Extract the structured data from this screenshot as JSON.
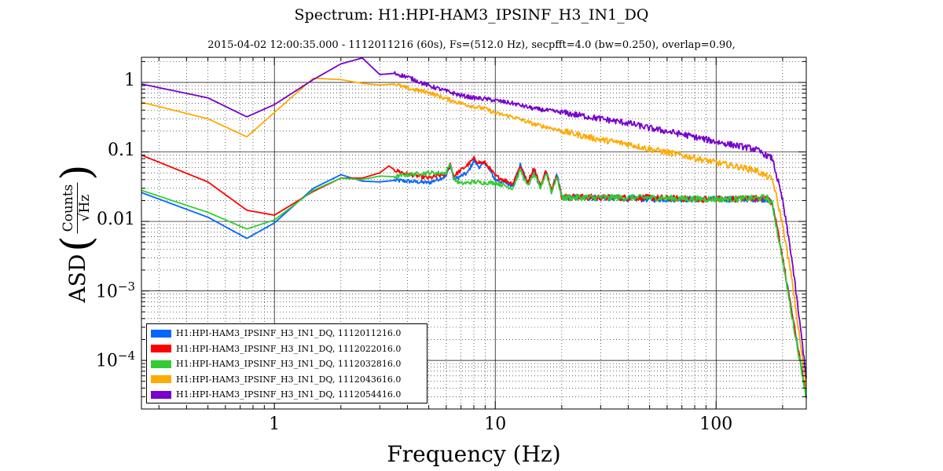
{
  "chart_data": {
    "type": "line",
    "title": "Spectrum: H1:HPI-HAM3_IPSINF_H3_IN1_DQ",
    "subtitle": "2015-04-02 12:00:35.000 - 1112011216 (60s), Fs=(512.0 Hz), secpfft=4.0 (bw=0.250), overlap=0.90,",
    "xlabel": "Frequency (Hz)",
    "ylabel": {
      "prefix": "ASD",
      "numerator": "Counts",
      "denominator": "√Hz"
    },
    "x_scale": "log",
    "y_scale": "log",
    "xlim": [
      0.25,
      256
    ],
    "ylim": [
      2e-05,
      2.3
    ],
    "grid": true,
    "legend_position": "lower-left",
    "x_ticks": [
      {
        "value": 1,
        "label": "1"
      },
      {
        "value": 10,
        "label": "10"
      },
      {
        "value": 100,
        "label": "100"
      }
    ],
    "y_ticks": [
      {
        "value": 1,
        "base": "1",
        "exp": ""
      },
      {
        "value": 0.1,
        "base": "0.1",
        "exp": ""
      },
      {
        "value": 0.01,
        "base": "0.01",
        "exp": ""
      },
      {
        "value": 0.001,
        "base": "10",
        "exp": "−3"
      },
      {
        "value": 0.0001,
        "base": "10",
        "exp": "−4"
      }
    ],
    "series": [
      {
        "name": "H1:HPI-HAM3_IPSINF_H3_IN1_DQ, 1112011216.0",
        "color": "#0066ff",
        "points": [
          [
            0.25,
            0.026
          ],
          [
            0.5,
            0.0115
          ],
          [
            0.75,
            0.0057
          ],
          [
            1.0,
            0.0095
          ],
          [
            1.5,
            0.03
          ],
          [
            2.0,
            0.047
          ],
          [
            2.5,
            0.038
          ],
          [
            3.0,
            0.037
          ],
          [
            3.5,
            0.039
          ],
          [
            4.0,
            0.038
          ],
          [
            5.0,
            0.036
          ],
          [
            6.0,
            0.045
          ],
          [
            6.25,
            0.065
          ],
          [
            6.5,
            0.04
          ],
          [
            7.0,
            0.045
          ],
          [
            7.5,
            0.05
          ],
          [
            8.0,
            0.075
          ],
          [
            8.5,
            0.06
          ],
          [
            9.0,
            0.07
          ],
          [
            10.0,
            0.04
          ],
          [
            12.0,
            0.033
          ],
          [
            13.0,
            0.065
          ],
          [
            14.0,
            0.035
          ],
          [
            15.0,
            0.055
          ],
          [
            16.0,
            0.03
          ],
          [
            17.0,
            0.052
          ],
          [
            18.0,
            0.026
          ],
          [
            19.0,
            0.05
          ],
          [
            20.0,
            0.022
          ],
          [
            30.0,
            0.022
          ],
          [
            50.0,
            0.021
          ],
          [
            80.0,
            0.021
          ],
          [
            120.0,
            0.021
          ],
          [
            170.0,
            0.021
          ],
          [
            180.0,
            0.018
          ],
          [
            200.0,
            0.003
          ],
          [
            220.0,
            0.0005
          ],
          [
            256.0,
            3e-05
          ]
        ]
      },
      {
        "name": "H1:HPI-HAM3_IPSINF_H3_IN1_DQ, 1112022016.0",
        "color": "#ff0000",
        "points": [
          [
            0.25,
            0.09
          ],
          [
            0.5,
            0.037
          ],
          [
            0.75,
            0.0145
          ],
          [
            1.0,
            0.0123
          ],
          [
            1.5,
            0.027
          ],
          [
            2.0,
            0.042
          ],
          [
            2.5,
            0.042
          ],
          [
            3.0,
            0.05
          ],
          [
            3.3,
            0.063
          ],
          [
            3.5,
            0.055
          ],
          [
            4.0,
            0.048
          ],
          [
            5.0,
            0.042
          ],
          [
            6.0,
            0.048
          ],
          [
            6.25,
            0.068
          ],
          [
            6.5,
            0.045
          ],
          [
            7.0,
            0.055
          ],
          [
            7.5,
            0.065
          ],
          [
            8.0,
            0.08
          ],
          [
            8.5,
            0.07
          ],
          [
            9.0,
            0.07
          ],
          [
            10.0,
            0.045
          ],
          [
            12.0,
            0.035
          ],
          [
            13.0,
            0.063
          ],
          [
            14.0,
            0.036
          ],
          [
            15.0,
            0.06
          ],
          [
            16.0,
            0.032
          ],
          [
            17.0,
            0.055
          ],
          [
            18.0,
            0.027
          ],
          [
            19.0,
            0.048
          ],
          [
            20.0,
            0.023
          ],
          [
            30.0,
            0.022
          ],
          [
            50.0,
            0.022
          ],
          [
            80.0,
            0.021
          ],
          [
            120.0,
            0.021
          ],
          [
            170.0,
            0.022
          ],
          [
            180.0,
            0.018
          ],
          [
            200.0,
            0.003
          ],
          [
            220.0,
            0.0005
          ],
          [
            256.0,
            3e-05
          ]
        ]
      },
      {
        "name": "H1:HPI-HAM3_IPSINF_H3_IN1_DQ, 1112032816.0",
        "color": "#33cc33",
        "points": [
          [
            0.25,
            0.028
          ],
          [
            0.5,
            0.0135
          ],
          [
            0.75,
            0.0078
          ],
          [
            1.0,
            0.0105
          ],
          [
            1.5,
            0.028
          ],
          [
            2.0,
            0.042
          ],
          [
            2.5,
            0.04
          ],
          [
            3.0,
            0.045
          ],
          [
            3.5,
            0.044
          ],
          [
            4.0,
            0.047
          ],
          [
            5.0,
            0.05
          ],
          [
            6.0,
            0.05
          ],
          [
            6.25,
            0.07
          ],
          [
            6.5,
            0.04
          ],
          [
            7.0,
            0.035
          ],
          [
            8.0,
            0.037
          ],
          [
            9.0,
            0.036
          ],
          [
            10.0,
            0.036
          ],
          [
            12.0,
            0.03
          ],
          [
            13.0,
            0.055
          ],
          [
            14.0,
            0.032
          ],
          [
            15.0,
            0.048
          ],
          [
            16.0,
            0.03
          ],
          [
            17.0,
            0.05
          ],
          [
            18.0,
            0.026
          ],
          [
            19.0,
            0.045
          ],
          [
            20.0,
            0.022
          ],
          [
            30.0,
            0.022
          ],
          [
            50.0,
            0.022
          ],
          [
            80.0,
            0.021
          ],
          [
            120.0,
            0.021
          ],
          [
            170.0,
            0.022
          ],
          [
            180.0,
            0.017
          ],
          [
            200.0,
            0.0028
          ],
          [
            220.0,
            0.00045
          ],
          [
            256.0,
            3e-05
          ]
        ]
      },
      {
        "name": "H1:HPI-HAM3_IPSINF_H3_IN1_DQ, 1112043616.0",
        "color": "#ffaa00",
        "points": [
          [
            0.25,
            0.52
          ],
          [
            0.5,
            0.3
          ],
          [
            0.75,
            0.165
          ],
          [
            1.0,
            0.37
          ],
          [
            1.5,
            1.15
          ],
          [
            2.0,
            1.1
          ],
          [
            2.5,
            0.97
          ],
          [
            3.0,
            0.92
          ],
          [
            3.5,
            0.95
          ],
          [
            4.0,
            0.82
          ],
          [
            5.0,
            0.72
          ],
          [
            6.0,
            0.58
          ],
          [
            7.0,
            0.5
          ],
          [
            8.0,
            0.45
          ],
          [
            9.0,
            0.42
          ],
          [
            10.0,
            0.36
          ],
          [
            12.0,
            0.32
          ],
          [
            15.0,
            0.25
          ],
          [
            18.0,
            0.22
          ],
          [
            20.0,
            0.2
          ],
          [
            25.0,
            0.17
          ],
          [
            30.0,
            0.15
          ],
          [
            40.0,
            0.13
          ],
          [
            50.0,
            0.11
          ],
          [
            70.0,
            0.09
          ],
          [
            100.0,
            0.07
          ],
          [
            150.0,
            0.055
          ],
          [
            180.0,
            0.04
          ],
          [
            200.0,
            0.009
          ],
          [
            220.0,
            0.0015
          ],
          [
            256.0,
            4e-05
          ]
        ]
      },
      {
        "name": "H1:HPI-HAM3_IPSINF_H3_IN1_DQ, 1112054416.0",
        "color": "#7700cc",
        "points": [
          [
            0.25,
            0.95
          ],
          [
            0.5,
            0.6
          ],
          [
            0.75,
            0.32
          ],
          [
            1.0,
            0.48
          ],
          [
            1.5,
            1.1
          ],
          [
            2.0,
            1.85
          ],
          [
            2.5,
            2.25
          ],
          [
            3.0,
            1.3
          ],
          [
            3.5,
            1.35
          ],
          [
            4.0,
            1.2
          ],
          [
            5.0,
            0.9
          ],
          [
            6.0,
            0.75
          ],
          [
            7.0,
            0.65
          ],
          [
            8.0,
            0.6
          ],
          [
            9.0,
            0.58
          ],
          [
            10.0,
            0.55
          ],
          [
            12.0,
            0.5
          ],
          [
            15.0,
            0.42
          ],
          [
            20.0,
            0.37
          ],
          [
            25.0,
            0.33
          ],
          [
            30.0,
            0.3
          ],
          [
            40.0,
            0.26
          ],
          [
            50.0,
            0.22
          ],
          [
            70.0,
            0.18
          ],
          [
            100.0,
            0.14
          ],
          [
            150.0,
            0.11
          ],
          [
            180.0,
            0.08
          ],
          [
            200.0,
            0.02
          ],
          [
            220.0,
            0.003
          ],
          [
            256.0,
            6e-05
          ]
        ]
      }
    ]
  }
}
